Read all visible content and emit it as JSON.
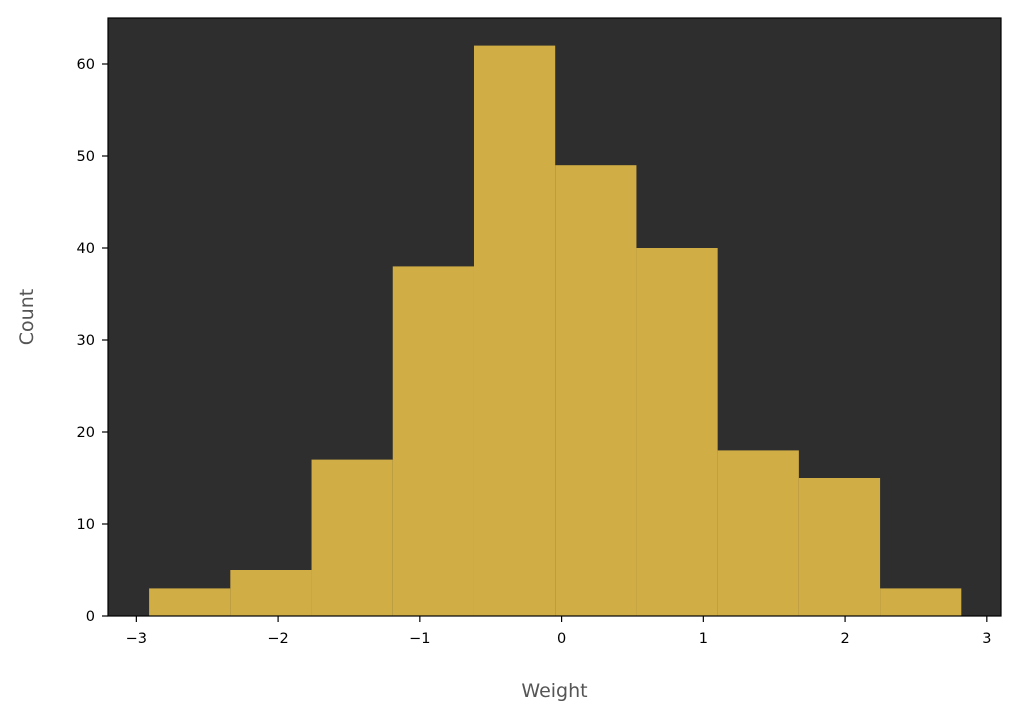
{
  "chart_data": {
    "type": "bar",
    "subtype": "histogram",
    "title": "",
    "xlabel": "Weight",
    "ylabel": "Count",
    "bin_edges": [
      -2.91,
      -2.337,
      -1.764,
      -1.191,
      -0.618,
      -0.045,
      0.528,
      1.101,
      1.674,
      2.247,
      2.82
    ],
    "values": [
      3,
      5,
      17,
      38,
      62,
      49,
      40,
      18,
      15,
      3
    ],
    "xlim": [
      -3.2,
      3.1
    ],
    "ylim": [
      0,
      65
    ],
    "xticks": [
      -3,
      -2,
      -1,
      0,
      1,
      2,
      3
    ],
    "xtick_labels": [
      "−3",
      "−2",
      "−1",
      "0",
      "1",
      "2",
      "3"
    ],
    "yticks": [
      0,
      10,
      20,
      30,
      40,
      50,
      60
    ],
    "ytick_labels": [
      "0",
      "10",
      "20",
      "30",
      "40",
      "50",
      "60"
    ],
    "grid": false,
    "legend": "none",
    "colors": {
      "bar": "#D0AD45",
      "plot_background": "#2E2E2E",
      "figure_background": "#FFFFFF",
      "axis_label": "#555555",
      "ticks": "#000000"
    }
  }
}
